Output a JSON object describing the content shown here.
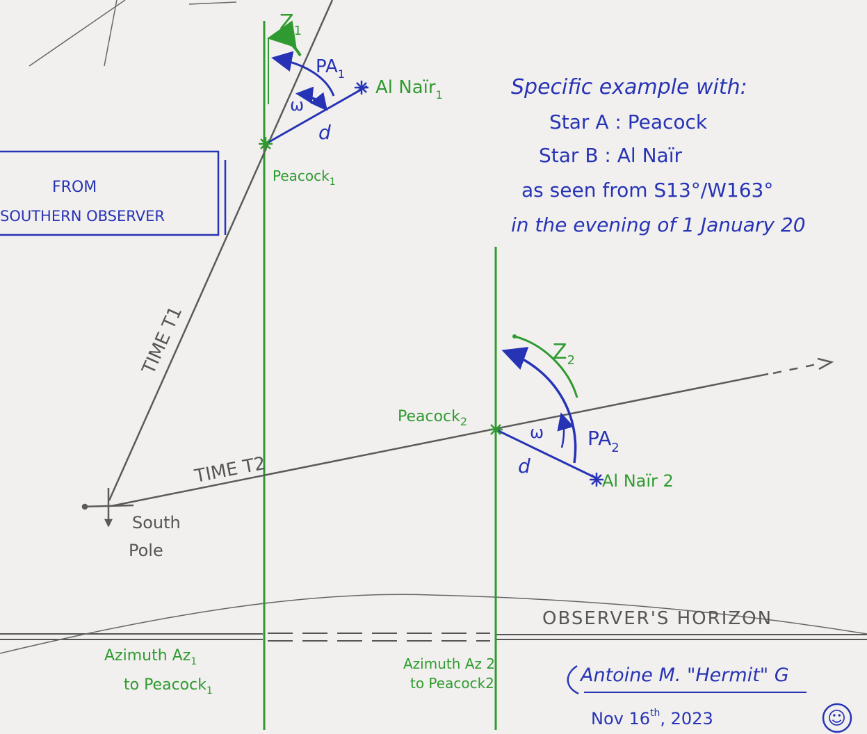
{
  "colors": {
    "paper": "#f1f0ee",
    "pencil": "#5a5a5a",
    "blue_ink": "#2733b5",
    "green_ink": "#2f9a2f"
  },
  "top_labels": {
    "zenith_1": "Z",
    "zenith_1_sub": "1",
    "pa_1": "PA",
    "pa_1_sub": "1",
    "omega_1": "ω",
    "d_1": "d",
    "alnair_1": "Al Naïr",
    "alnair_1_sub": "1",
    "peacock_1": "Peacock",
    "peacock_1_sub": "1"
  },
  "box": {
    "line1": "FROM",
    "line2": "SOUTHERN OBSERVER"
  },
  "example": {
    "line1": "Specific example with:",
    "line2": "Star A  : Peacock",
    "line3": "Star B  : Al Naïr",
    "line4": "as seen from S13°/W163°",
    "line5": "in the evening of 1 January 20"
  },
  "lines": {
    "time_t1": "TIME T1",
    "time_t2": "TIME T2",
    "horizon": "OBSERVER'S HORIZON"
  },
  "pole": {
    "line1": "South",
    "line2": "Pole"
  },
  "second_position": {
    "zenith_2": "Z",
    "zenith_2_sub": "2",
    "peacock_2": "Peacock",
    "peacock_2_sub": "2",
    "omega_2": "ω",
    "pa_2": "PA",
    "pa_2_sub": "2",
    "d_2": "d",
    "alnair_2": "Al Naïr 2"
  },
  "azimuth": {
    "az1_line1": "Azimuth  Az",
    "az1_sub": "1",
    "az1_line2": "to Peacock",
    "az1_line2_sub": "1",
    "az2_line1": "Azimuth Az 2",
    "az2_line2": "to Peacock2"
  },
  "signature": {
    "name": "Antoine M. \"Hermit\" G",
    "date": "Nov 16",
    "date_sup": "th",
    "year": ", 2023",
    "smiley": "☺"
  }
}
